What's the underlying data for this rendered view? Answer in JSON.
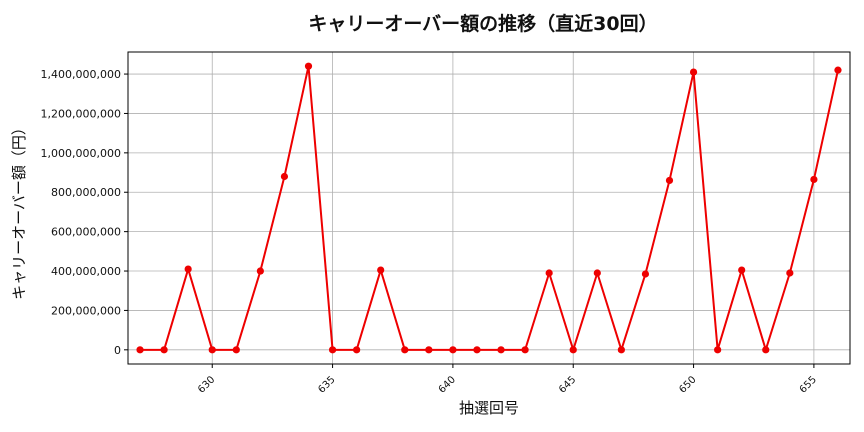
{
  "chart_data": {
    "type": "line",
    "title": "キャリーオーバー額の推移（直近30回）",
    "xlabel": "抽選回号",
    "ylabel": "キャリーオーバー額（円）",
    "x": [
      627,
      628,
      629,
      630,
      631,
      632,
      633,
      634,
      635,
      636,
      637,
      638,
      639,
      640,
      641,
      642,
      643,
      644,
      645,
      646,
      647,
      648,
      649,
      650,
      651,
      652,
      653,
      654,
      655,
      656
    ],
    "series": [
      {
        "values": [
          0,
          0,
          410000000,
          0,
          0,
          400000000,
          880000000,
          1440000000,
          0,
          0,
          405000000,
          0,
          0,
          0,
          0,
          0,
          0,
          390000000,
          0,
          390000000,
          0,
          385000000,
          860000000,
          1410000000,
          0,
          405000000,
          0,
          390000000,
          865000000,
          1420000000
        ],
        "color": "#ee0000"
      }
    ],
    "xticks": [
      630,
      635,
      640,
      645,
      650,
      655
    ],
    "yticks": [
      0,
      200000000,
      400000000,
      600000000,
      800000000,
      1000000000,
      1200000000,
      1400000000
    ],
    "xlim": [
      626.5,
      656.5
    ],
    "ylim": [
      -72000000,
      1512000000
    ],
    "grid": true,
    "legend": "none"
  }
}
